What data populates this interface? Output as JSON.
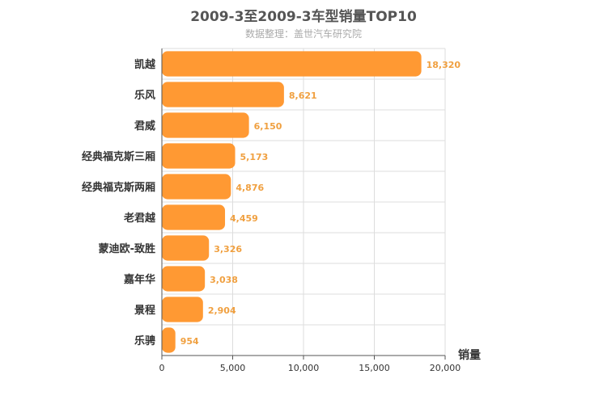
{
  "chart_data": {
    "type": "bar",
    "orientation": "horizontal",
    "title": "2009-3至2009-3车型销量TOP10",
    "subtitle": "数据整理：盖世汽车研究院",
    "xlabel": "销量",
    "ylabel": "",
    "categories": [
      "凯越",
      "乐风",
      "君威",
      "经典福克斯三厢",
      "经典福克斯两厢",
      "老君越",
      "蒙迪欧-致胜",
      "嘉年华",
      "景程",
      "乐骋"
    ],
    "values": [
      18320,
      8621,
      6150,
      5173,
      4876,
      4459,
      3326,
      3038,
      2904,
      954
    ],
    "value_labels": [
      "18,320",
      "8,621",
      "6,150",
      "5,173",
      "4,876",
      "4,459",
      "3,326",
      "3,038",
      "2,904",
      "954"
    ],
    "xlim": [
      0,
      20000
    ],
    "x_ticks": [
      0,
      5000,
      10000,
      15000,
      20000
    ],
    "x_tick_labels": [
      "0",
      "5,000",
      "10,000",
      "15,000",
      "20,000"
    ],
    "grid": true,
    "colors": {
      "bar": "#ff9933",
      "value_label": "#f0a040",
      "grid": "#dddddd",
      "axis": "#555555",
      "text": "#333333"
    }
  }
}
